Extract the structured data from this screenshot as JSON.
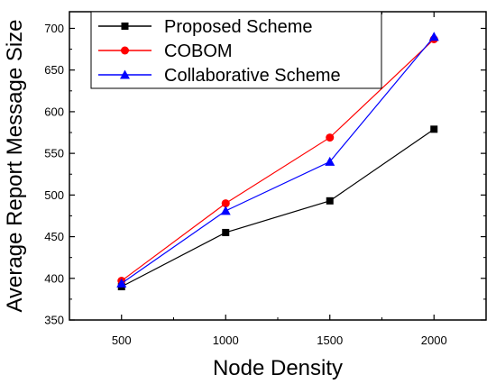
{
  "chart_data": {
    "type": "line",
    "title": "",
    "xlabel": "Node Density",
    "ylabel": "Average Report Message Size",
    "x": [
      500,
      1000,
      1500,
      2000
    ],
    "xlim": [
      250,
      2250
    ],
    "ylim": [
      350,
      720
    ],
    "xticks": [
      "500",
      "1000",
      "1500",
      "2000"
    ],
    "yticks": [
      "350",
      "400",
      "450",
      "500",
      "550",
      "600",
      "650",
      "700"
    ],
    "grid": false,
    "legend_position": "top-left",
    "series": [
      {
        "name": "Proposed Scheme",
        "values": [
          390,
          455,
          493,
          579
        ],
        "color": "#000000",
        "marker": "square"
      },
      {
        "name": "COBOM",
        "values": [
          397,
          490,
          569,
          687
        ],
        "color": "#ff0000",
        "marker": "circle"
      },
      {
        "name": "Collaborative Scheme",
        "values": [
          394,
          481,
          540,
          690
        ],
        "color": "#0000ff",
        "marker": "triangle"
      }
    ]
  }
}
